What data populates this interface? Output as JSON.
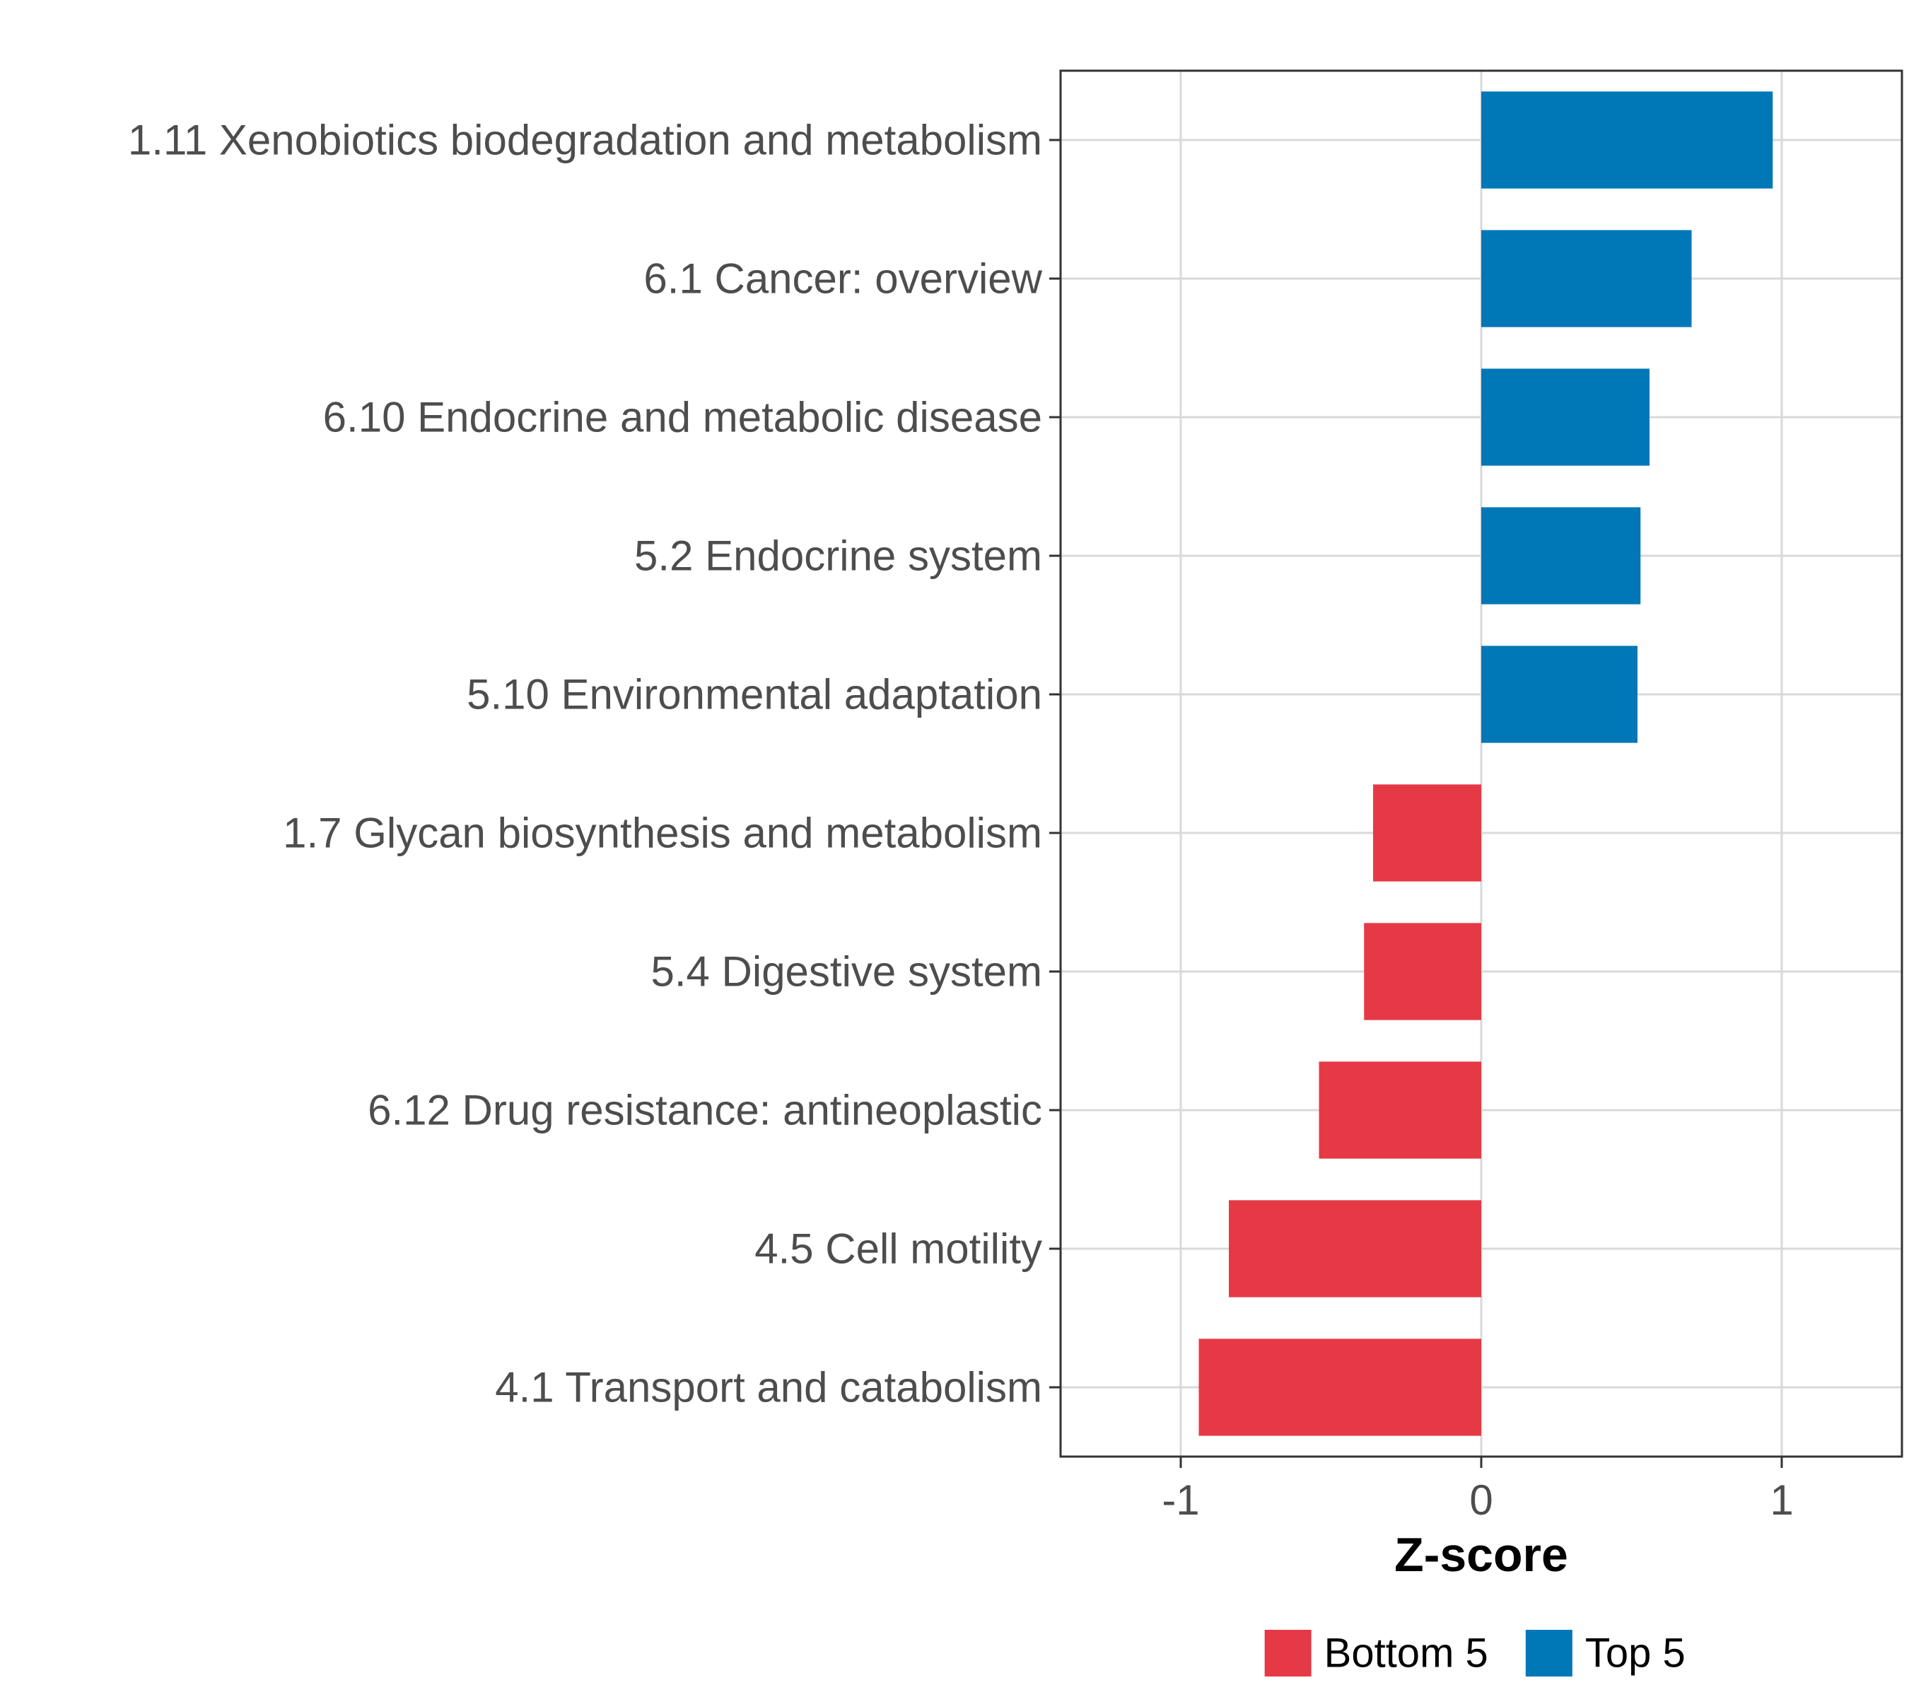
{
  "chart_data": {
    "type": "bar",
    "orientation": "horizontal",
    "title": "",
    "xlabel": "Z-score",
    "ylabel": "",
    "xlim": [
      -1.4,
      1.4
    ],
    "xticks": [
      -1,
      0,
      1
    ],
    "xtick_labels": [
      "-1",
      "0",
      "1"
    ],
    "grid": true,
    "legend_position": "bottom",
    "categories": [
      "1.11 Xenobiotics biodegradation and metabolism",
      "6.1 Cancer: overview",
      "6.10 Endocrine and metabolic disease",
      "5.2 Endocrine system",
      "5.10 Environmental adaptation",
      "1.7 Glycan biosynthesis and metabolism",
      "5.4 Digestive system",
      "6.12 Drug resistance: antineoplastic",
      "4.5 Cell motility",
      "4.1 Transport and catabolism"
    ],
    "values": [
      0.97,
      0.7,
      0.56,
      0.53,
      0.52,
      -0.36,
      -0.39,
      -0.54,
      -0.84,
      -0.94
    ],
    "groups": [
      "Top 5",
      "Top 5",
      "Top 5",
      "Top 5",
      "Top 5",
      "Bottom 5",
      "Bottom 5",
      "Bottom 5",
      "Bottom 5",
      "Bottom 5"
    ],
    "legend": [
      {
        "name": "Bottom 5",
        "color": "#e63946"
      },
      {
        "name": "Top 5",
        "color": "#0077b6"
      }
    ]
  }
}
